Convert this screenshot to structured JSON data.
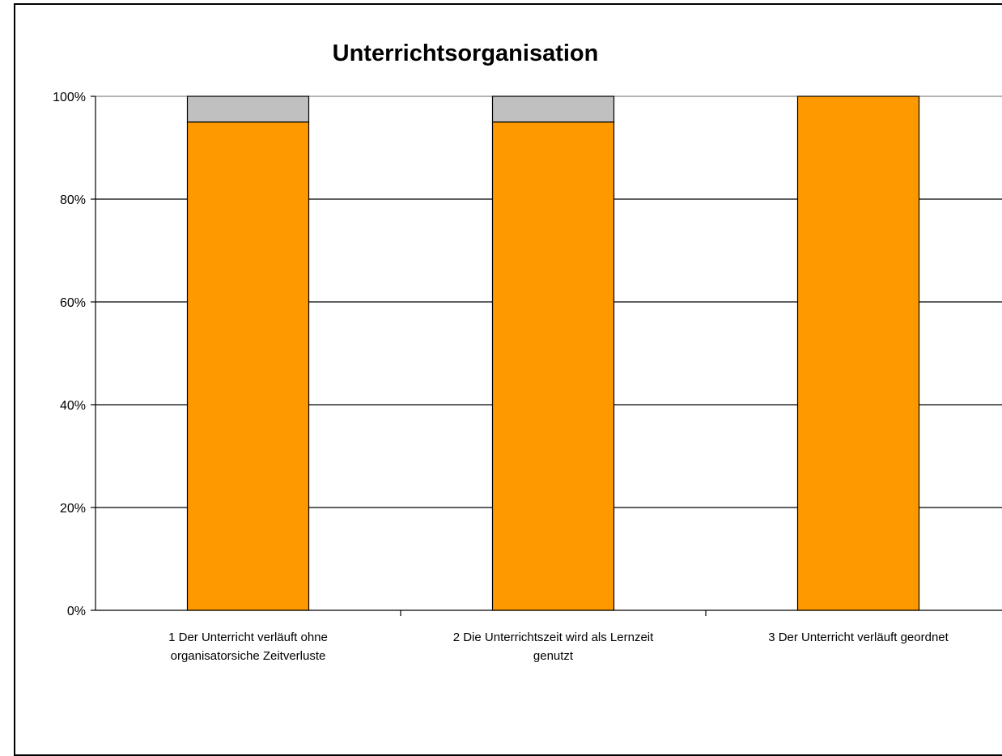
{
  "chart_data": {
    "type": "bar",
    "stacked": true,
    "title": "Unterrichtsorganisation",
    "categories": [
      [
        "1 Der Unterricht verläuft ohne",
        "organisatorsiche Zeitverluste"
      ],
      [
        "2 Die Unterrichtszeit wird als  Lernzeit",
        "genutzt"
      ],
      [
        "3 Der Unterricht verläuft geordnet"
      ]
    ],
    "series": [
      {
        "values": [
          95,
          95,
          100
        ],
        "color": "#FF9900"
      },
      {
        "values": [
          5,
          5,
          0
        ],
        "color": "#C0C0C0"
      }
    ],
    "ylim": [
      0,
      100
    ],
    "yticks": [
      "0%",
      "20%",
      "40%",
      "60%",
      "80%",
      "100%"
    ],
    "grid": true
  }
}
